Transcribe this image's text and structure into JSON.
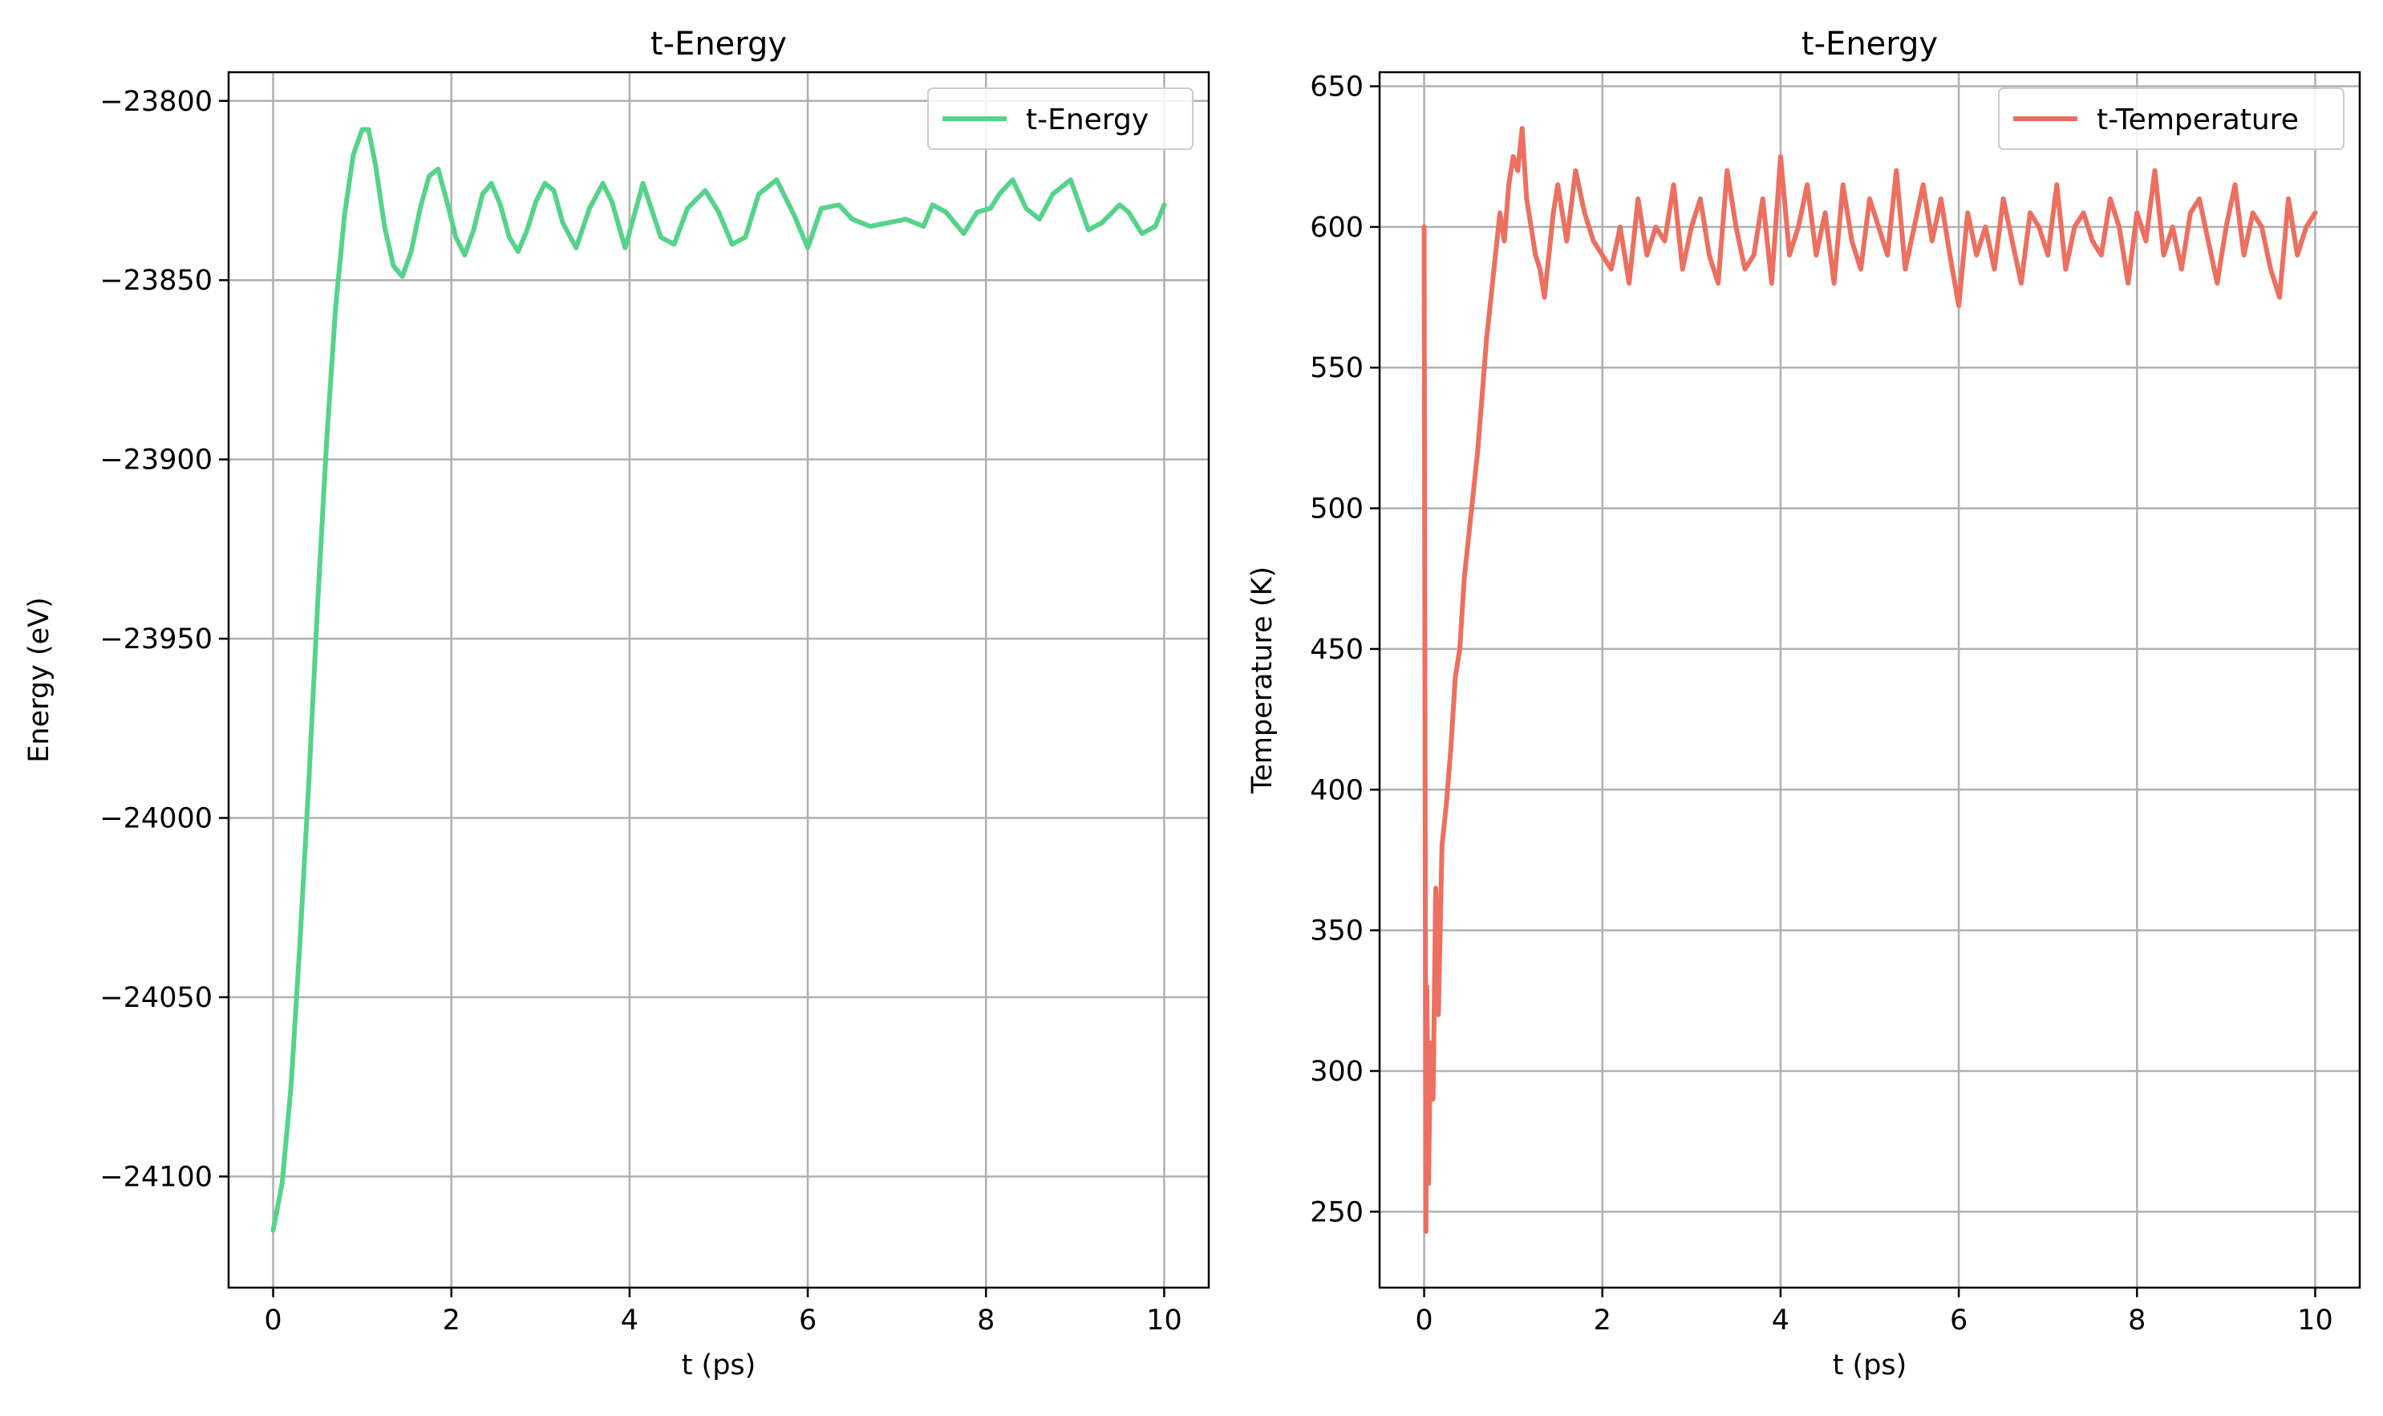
{
  "chart_data": [
    {
      "type": "line",
      "title": "t-Energy",
      "xlabel": "t (ps)",
      "ylabel": "Energy (eV)",
      "xlim": [
        -0.5,
        10.5
      ],
      "ylim": [
        -24131,
        -23792
      ],
      "xticks": [
        0,
        2,
        4,
        6,
        8,
        10
      ],
      "xtick_labels": [
        "0",
        "2",
        "4",
        "6",
        "8",
        "10"
      ],
      "yticks": [
        -23800,
        -23850,
        -23900,
        -23950,
        -24000,
        -24050,
        -24100
      ],
      "ytick_labels": [
        "−23800",
        "−23850",
        "−23900",
        "−23950",
        "−24000",
        "−24050",
        "−24100"
      ],
      "grid": true,
      "legend_position": "top-right",
      "series": [
        {
          "name": "t-Energy",
          "color": "#55d38b",
          "x": [
            0,
            0.1,
            0.2,
            0.3,
            0.4,
            0.5,
            0.6,
            0.7,
            0.8,
            0.9,
            1.0,
            1.07,
            1.15,
            1.25,
            1.35,
            1.45,
            1.55,
            1.65,
            1.75,
            1.85,
            1.95,
            2.05,
            2.15,
            2.25,
            2.35,
            2.45,
            2.55,
            2.65,
            2.75,
            2.85,
            2.95,
            3.05,
            3.15,
            3.25,
            3.4,
            3.55,
            3.7,
            3.8,
            3.95,
            4.15,
            4.35,
            4.5,
            4.65,
            4.85,
            5.0,
            5.15,
            5.3,
            5.45,
            5.65,
            5.85,
            6.0,
            6.15,
            6.35,
            6.5,
            6.7,
            6.9,
            7.1,
            7.3,
            7.4,
            7.55,
            7.75,
            7.9,
            8.05,
            8.15,
            8.3,
            8.45,
            8.6,
            8.75,
            8.95,
            9.15,
            9.3,
            9.5,
            9.6,
            9.75,
            9.9,
            10.0
          ],
          "y": [
            -24115,
            -24102,
            -24075,
            -24035,
            -23990,
            -23940,
            -23895,
            -23858,
            -23832,
            -23815,
            -23808,
            -23808,
            -23818,
            -23835,
            -23846,
            -23849,
            -23842,
            -23830,
            -23821,
            -23819,
            -23828,
            -23838,
            -23843,
            -23836,
            -23826,
            -23823,
            -23829,
            -23838,
            -23842,
            -23836,
            -23828,
            -23823,
            -23825,
            -23834,
            -23841,
            -23830,
            -23823,
            -23828,
            -23841,
            -23823,
            -23838,
            -23840,
            -23830,
            -23825,
            -23831,
            -23840,
            -23838,
            -23826,
            -23822,
            -23832,
            -23841,
            -23830,
            -23829,
            -23833,
            -23835,
            -23834,
            -23833,
            -23835,
            -23829,
            -23831,
            -23837,
            -23831,
            -23830,
            -23826,
            -23822,
            -23830,
            -23833,
            -23826,
            -23822,
            -23836,
            -23834,
            -23829,
            -23831,
            -23837,
            -23835,
            -23829
          ]
        }
      ]
    },
    {
      "type": "line",
      "title": "t-Energy",
      "xlabel": "t (ps)",
      "ylabel": "Temperature (K)",
      "xlim": [
        -0.5,
        10.5
      ],
      "ylim": [
        223,
        655
      ],
      "xticks": [
        0,
        2,
        4,
        6,
        8,
        10
      ],
      "xtick_labels": [
        "0",
        "2",
        "4",
        "6",
        "8",
        "10"
      ],
      "yticks": [
        250,
        300,
        350,
        400,
        450,
        500,
        550,
        600,
        650
      ],
      "ytick_labels": [
        "250",
        "300",
        "350",
        "400",
        "450",
        "500",
        "550",
        "600",
        "650"
      ],
      "grid": true,
      "legend_position": "top-right",
      "series": [
        {
          "name": "t-Temperature",
          "color": "#ec6f60",
          "x": [
            0,
            0.02,
            0.03,
            0.05,
            0.07,
            0.1,
            0.13,
            0.16,
            0.2,
            0.25,
            0.3,
            0.35,
            0.4,
            0.45,
            0.5,
            0.55,
            0.6,
            0.65,
            0.7,
            0.75,
            0.8,
            0.85,
            0.9,
            0.95,
            1.0,
            1.05,
            1.1,
            1.15,
            1.2,
            1.25,
            1.3,
            1.35,
            1.4,
            1.45,
            1.5,
            1.6,
            1.7,
            1.8,
            1.9,
            2.0,
            2.1,
            2.2,
            2.3,
            2.4,
            2.5,
            2.6,
            2.7,
            2.8,
            2.9,
            3.0,
            3.1,
            3.2,
            3.3,
            3.4,
            3.5,
            3.6,
            3.7,
            3.8,
            3.9,
            4.0,
            4.1,
            4.2,
            4.3,
            4.4,
            4.5,
            4.6,
            4.7,
            4.8,
            4.9,
            5.0,
            5.1,
            5.2,
            5.3,
            5.4,
            5.5,
            5.6,
            5.7,
            5.8,
            5.9,
            6.0,
            6.1,
            6.2,
            6.3,
            6.4,
            6.5,
            6.6,
            6.7,
            6.8,
            6.9,
            7.0,
            7.1,
            7.2,
            7.3,
            7.4,
            7.5,
            7.6,
            7.7,
            7.8,
            7.9,
            8.0,
            8.1,
            8.2,
            8.3,
            8.4,
            8.5,
            8.6,
            8.7,
            8.8,
            8.9,
            9.0,
            9.1,
            9.2,
            9.3,
            9.4,
            9.5,
            9.6,
            9.7,
            9.8,
            9.9,
            10.0
          ],
          "y": [
            600,
            243,
            330,
            260,
            310,
            290,
            365,
            320,
            380,
            395,
            415,
            440,
            450,
            475,
            490,
            505,
            520,
            540,
            560,
            575,
            590,
            605,
            595,
            615,
            625,
            620,
            635,
            610,
            600,
            590,
            585,
            575,
            590,
            605,
            615,
            595,
            620,
            605,
            595,
            590,
            585,
            600,
            580,
            610,
            590,
            600,
            595,
            615,
            585,
            600,
            610,
            590,
            580,
            620,
            600,
            585,
            590,
            610,
            580,
            625,
            590,
            600,
            615,
            590,
            605,
            580,
            615,
            595,
            585,
            610,
            600,
            590,
            620,
            585,
            600,
            615,
            595,
            610,
            590,
            572,
            605,
            590,
            600,
            585,
            610,
            595,
            580,
            605,
            600,
            590,
            615,
            585,
            600,
            605,
            595,
            590,
            610,
            600,
            580,
            605,
            595,
            620,
            590,
            600,
            585,
            605,
            610,
            595,
            580,
            600,
            615,
            590,
            605,
            600,
            585,
            575,
            610,
            590,
            600,
            605
          ]
        }
      ]
    }
  ]
}
